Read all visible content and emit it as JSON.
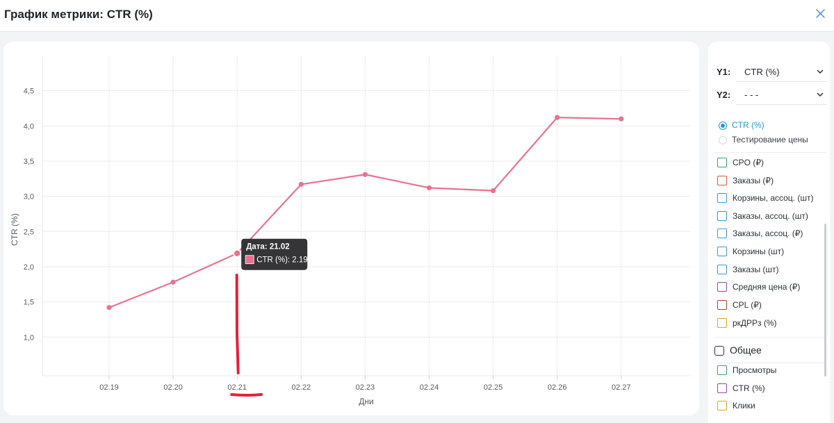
{
  "header": {
    "title": "График метрики: CTR (%)",
    "close_icon": "close-icon"
  },
  "chart_data": {
    "type": "line",
    "x": [
      "02.19",
      "02.20",
      "02.21",
      "02.22",
      "02.23",
      "02.24",
      "02.25",
      "02.26",
      "02.27"
    ],
    "series": [
      {
        "name": "CTR (%)",
        "values": [
          1.42,
          1.78,
          2.19,
          3.17,
          3.31,
          3.12,
          3.08,
          4.12,
          4.1
        ],
        "color": "#e8728f"
      }
    ],
    "xlabel": "Дни",
    "ylabel": "CTR (%)",
    "yticks": [
      "1,0",
      "1,5",
      "2,0",
      "2,5",
      "3,0",
      "3,5",
      "4,0",
      "4,5"
    ],
    "ylim": [
      0.45,
      5.0
    ],
    "grid": true,
    "tooltip": {
      "title": "Дата: 21.02",
      "label": "CTR (%): 2.19",
      "index": 2
    },
    "annotation_color": "#e0213b"
  },
  "sidebar": {
    "y1": {
      "label": "Y1:",
      "value": "CTR (%)"
    },
    "y2": {
      "label": "Y2:",
      "value": "- - -"
    },
    "radios": [
      {
        "label": "CTR (%)",
        "selected": true
      },
      {
        "label": "Тестирование цены",
        "selected": false
      }
    ],
    "metrics": [
      {
        "label": "CPO (₽)",
        "color": "#2ea57b"
      },
      {
        "label": "Заказы (₽)",
        "color": "#e05a3a"
      },
      {
        "label": "Корзины, ассоц. (шт)",
        "color": "#3b9ad2"
      },
      {
        "label": "Заказы, ассоц. (шт)",
        "color": "#3b9ad2"
      },
      {
        "label": "Заказы, ассоц. (₽)",
        "color": "#3b9ad2"
      },
      {
        "label": "Корзины (шт)",
        "color": "#3b9ad2"
      },
      {
        "label": "Заказы (шт)",
        "color": "#3b9ad2"
      },
      {
        "label": "Средняя цена (₽)",
        "color": "#8e4aa8"
      },
      {
        "label": "CPL (₽)",
        "color": "#b5433a"
      },
      {
        "label": "ркДРРз (%)",
        "color": "#e0a51f"
      }
    ],
    "group": {
      "label": "Общее"
    },
    "group_items": [
      {
        "label": "Просмотры",
        "color": "#2ea57b"
      },
      {
        "label": "CTR (%)",
        "color": "#8e4aa8"
      },
      {
        "label": "Клики",
        "color": "#e0a51f"
      }
    ]
  }
}
